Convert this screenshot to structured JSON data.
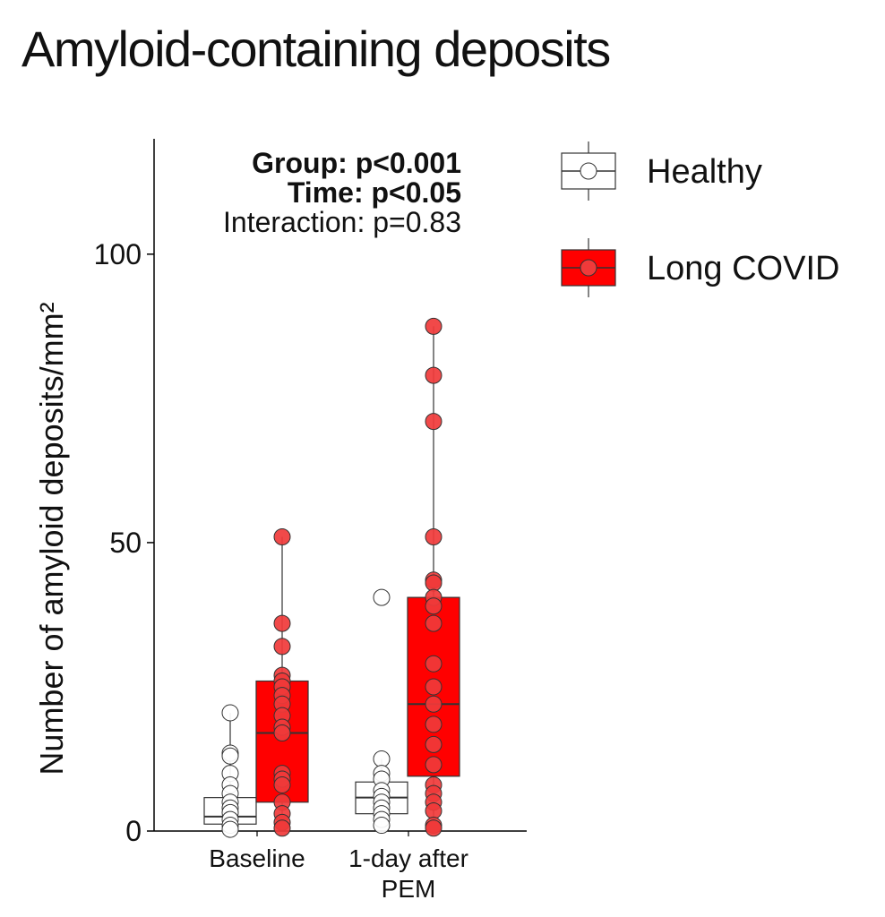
{
  "page": {
    "title": "Amyloid-containing deposits"
  },
  "chart_data": {
    "type": "box",
    "title": "Amyloid-containing deposits",
    "ylabel": "Number of amyloid deposits/mm²",
    "xlabel": "",
    "ylim": [
      0,
      120
    ],
    "yticks": [
      0,
      50,
      100
    ],
    "categories": [
      "Baseline",
      "1-day after\nPEM"
    ],
    "category_lines": [
      [
        "Baseline"
      ],
      [
        "1-day after",
        "PEM"
      ]
    ],
    "annotations": [
      {
        "text": "Group: p<0.001",
        "bold": true
      },
      {
        "text": "Time: p<0.05",
        "bold": true
      },
      {
        "text": "Interaction: p=0.83",
        "bold": false
      }
    ],
    "legend_position": "right",
    "series": [
      {
        "name": "Healthy",
        "fill": "#ffffff",
        "point_fill": "#ffffff",
        "stroke": "#333333",
        "boxes": [
          {
            "q1": 1.2,
            "median": 2.5,
            "q3": 5.8,
            "whisker_low": 0,
            "whisker_high": 20.5
          },
          {
            "q1": 3.0,
            "median": 5.8,
            "q3": 8.5,
            "whisker_low": 1.0,
            "whisker_high": 12.5
          }
        ],
        "points": [
          [
            20.5,
            13.5,
            13,
            10,
            8,
            6.5,
            5,
            4,
            3.2,
            2,
            1,
            0.3
          ],
          [
            40.5,
            12.5,
            10,
            9,
            7,
            6,
            5,
            4,
            3,
            2,
            1
          ]
        ]
      },
      {
        "name": "Long COVID",
        "fill": "#ff0000",
        "point_fill": "#f03a3a",
        "stroke": "#333333",
        "boxes": [
          {
            "q1": 5.0,
            "median": 17.0,
            "q3": 26.0,
            "whisker_low": 0.5,
            "whisker_high": 51.0
          },
          {
            "q1": 9.5,
            "median": 22.0,
            "q3": 40.5,
            "whisker_low": 0.5,
            "whisker_high": 87.5
          }
        ],
        "points": [
          [
            51,
            36,
            32,
            27,
            26,
            25,
            23.5,
            22,
            20,
            18,
            17,
            10,
            9,
            8,
            5,
            3,
            1.5,
            0.5
          ],
          [
            87.5,
            79,
            71,
            51,
            43.5,
            43,
            40.5,
            39,
            36,
            29,
            25,
            22,
            18.5,
            15,
            11.5,
            8,
            6.5,
            5,
            3.5,
            1,
            0.5
          ]
        ]
      }
    ]
  }
}
